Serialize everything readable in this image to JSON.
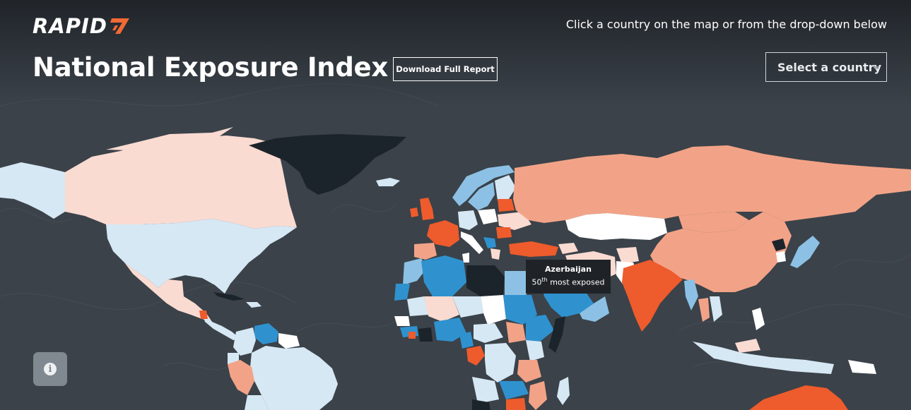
{
  "brand": {
    "logo_text": "RAPID",
    "logo_mark": "7-mark-icon",
    "accent_color": "#f26a34"
  },
  "header": {
    "title": "National Exposure Index",
    "download_label": "Download Full Report",
    "instructions": "Click a country on the map or from the drop-down below",
    "select": {
      "label": "Select a country",
      "icon": "chevron-down-icon"
    }
  },
  "tooltip": {
    "country": "Azerbaijan",
    "rank_number": "50",
    "rank_suffix": "th",
    "rank_text": "most exposed"
  },
  "legend_colors": {
    "most_exposed": "#ee5b2c",
    "high": "#f2a387",
    "above_mid": "#fadbd2",
    "mid": "#ffffff",
    "below_mid": "#d6e8f4",
    "low": "#8cc1e5",
    "lowest": "#2f92cf",
    "no_data": "#1c242b",
    "background": "#3b4249"
  },
  "info_button": {
    "icon": "info-icon",
    "glyph": "i"
  }
}
